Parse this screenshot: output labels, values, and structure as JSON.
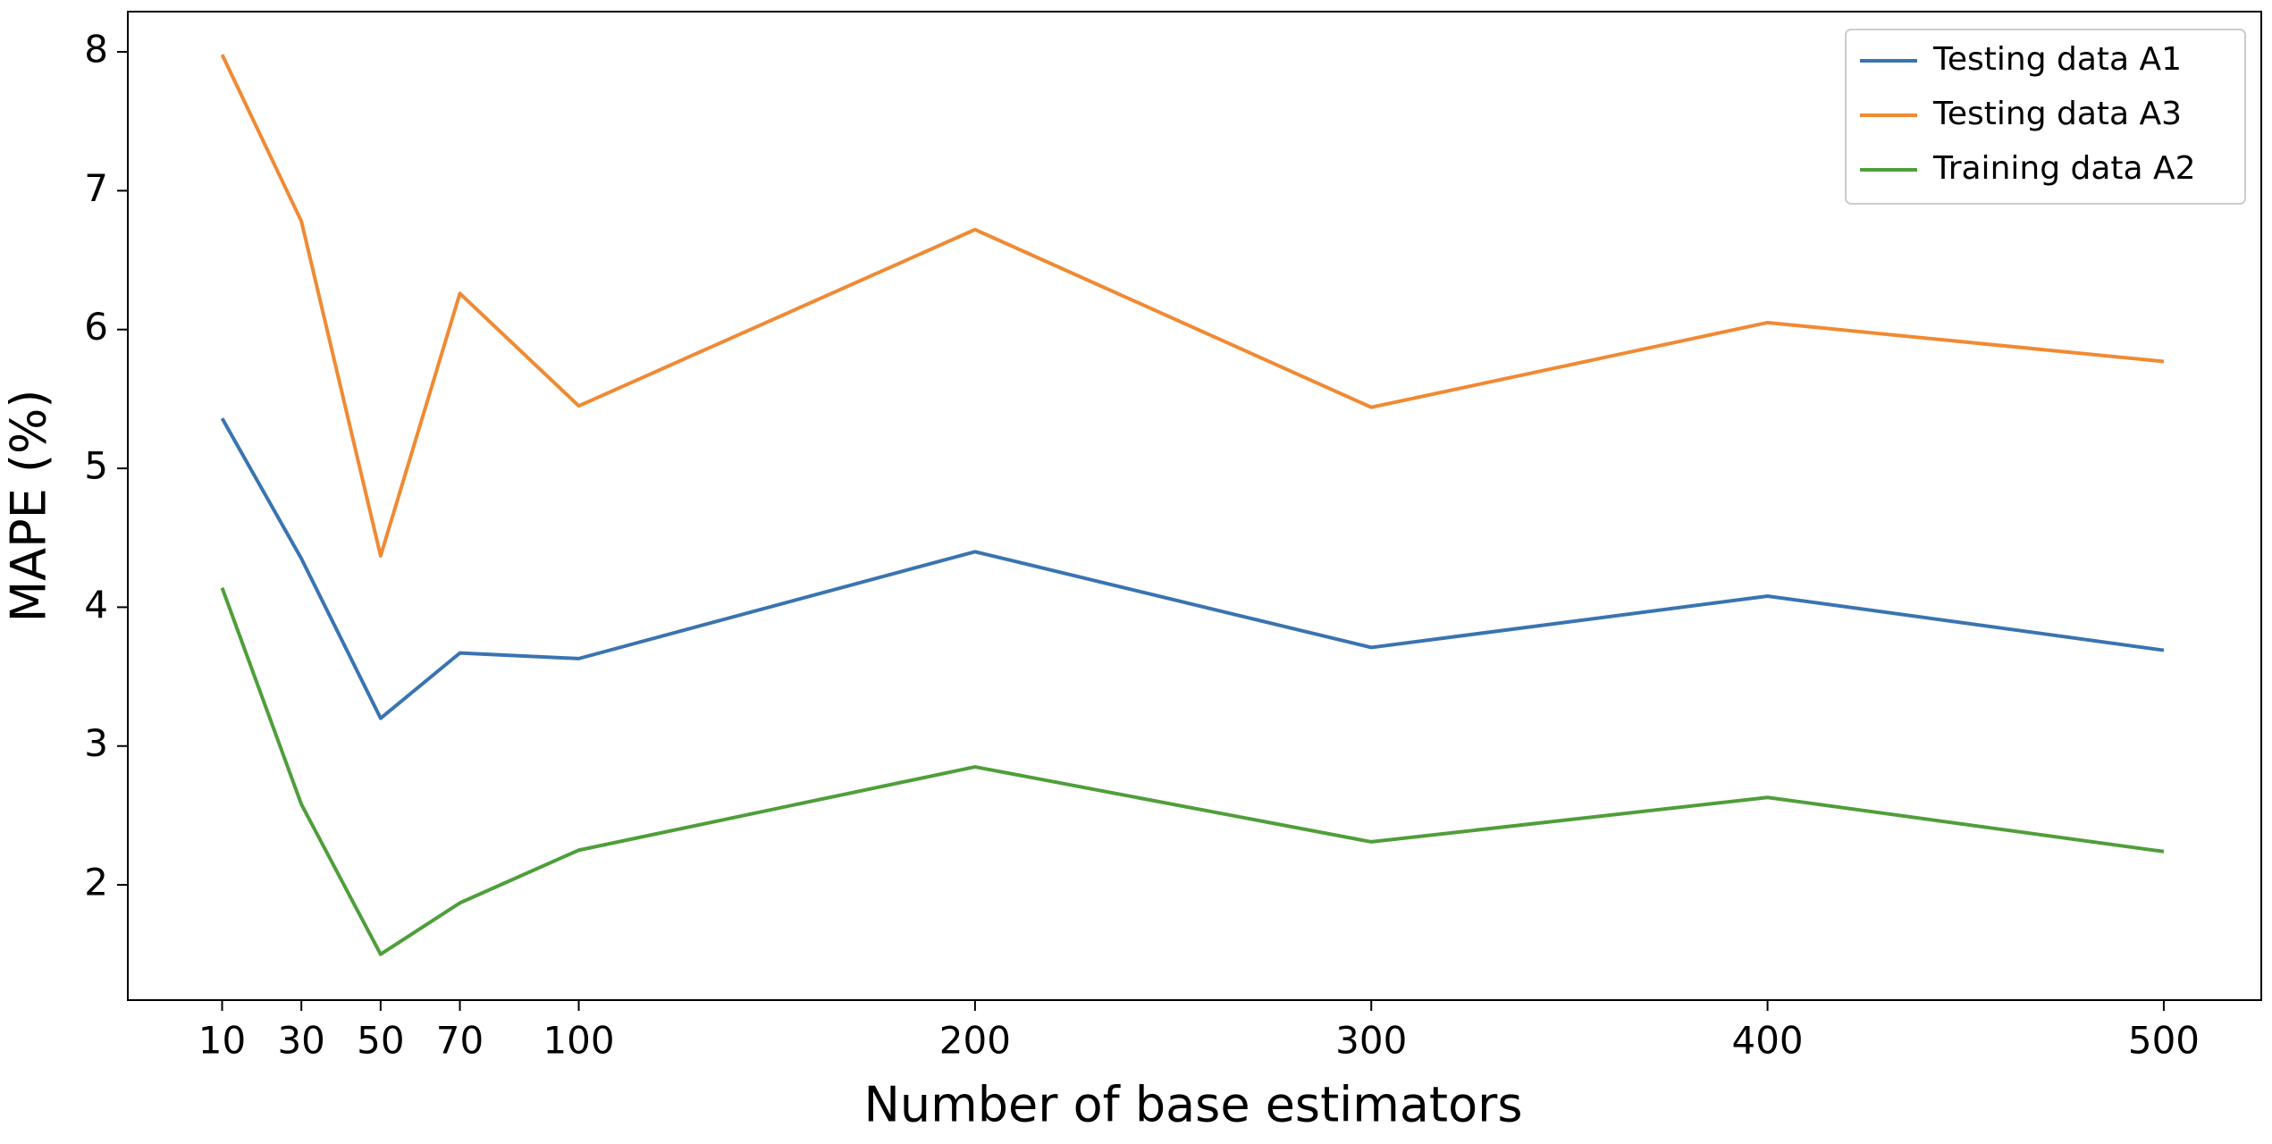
{
  "chart_data": {
    "type": "line",
    "x_label": "Number of base estimators",
    "y_label": "MAPE (%)",
    "x": [
      10,
      30,
      50,
      70,
      100,
      200,
      300,
      400,
      500
    ],
    "series": [
      {
        "name": "Testing data A1",
        "color": "#3a74b0",
        "values": [
          5.36,
          4.35,
          3.2,
          3.67,
          3.63,
          4.4,
          3.71,
          4.08,
          3.69
        ]
      },
      {
        "name": "Testing data A3",
        "color": "#f08a33",
        "values": [
          7.98,
          6.78,
          4.37,
          6.26,
          5.45,
          6.72,
          5.44,
          6.05,
          5.77
        ]
      },
      {
        "name": "Training data A2",
        "color": "#4f9e3a",
        "values": [
          4.14,
          2.58,
          1.5,
          1.87,
          2.25,
          2.85,
          2.31,
          2.63,
          2.24
        ]
      }
    ],
    "xlim": [
      -13.8,
      524.6
    ],
    "xticks": [
      10,
      30,
      50,
      70,
      100,
      200,
      300,
      400,
      500
    ],
    "ylim": [
      1.17,
      8.29
    ],
    "yticks": [
      2,
      3,
      4,
      5,
      6,
      7,
      8
    ],
    "grid": false,
    "legend": "upper right"
  }
}
